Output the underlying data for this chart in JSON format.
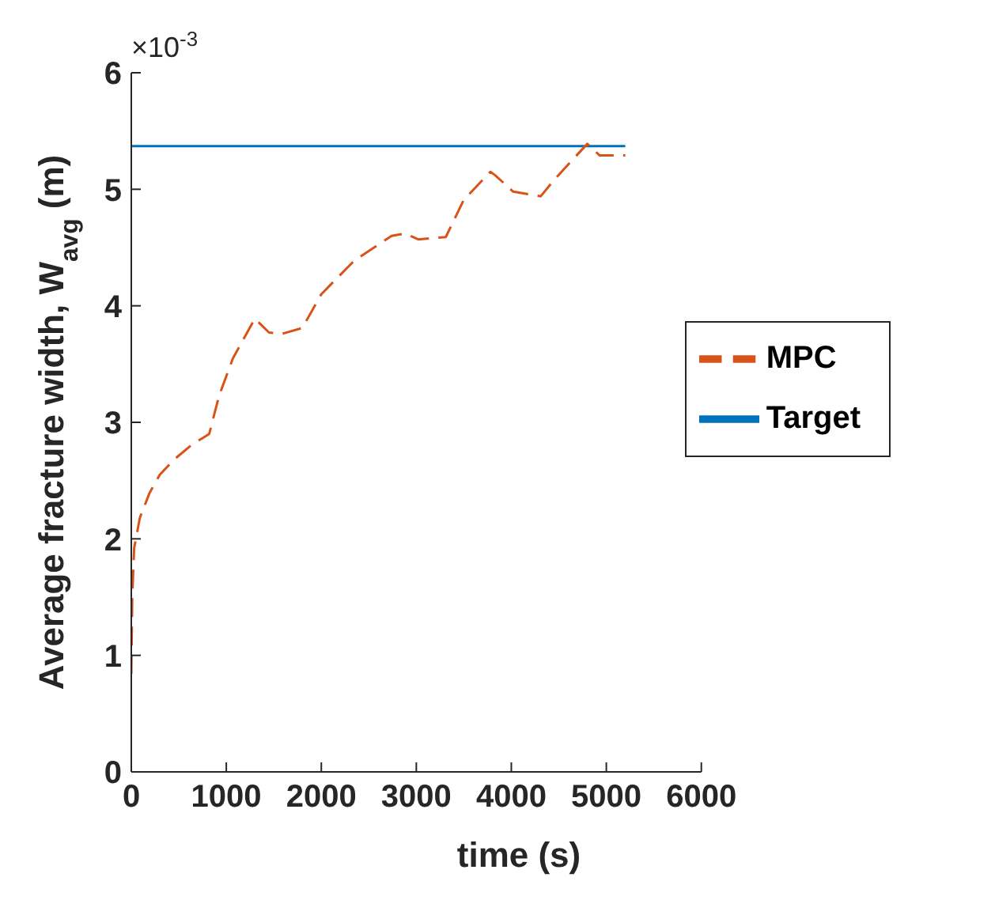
{
  "chart_data": {
    "type": "line",
    "xlabel": "time (s)",
    "ylabel": "Average fracture width, W$_{avg}$ (m)",
    "annotations": [
      "×10$^{-3}$"
    ],
    "xlim": [
      0,
      6000
    ],
    "xticks": [
      0,
      1000,
      2000,
      3000,
      4000,
      5000,
      6000
    ],
    "ylim": [
      0,
      6
    ],
    "yticks": [
      0,
      1,
      2,
      3,
      4,
      5,
      6
    ],
    "grid": false,
    "legend": "right",
    "marker": "none",
    "series": [
      {
        "name": "Target",
        "color": "#0072bd",
        "line_style": "solid",
        "x": [
          0,
          5200
        ],
        "values": [
          5.37,
          5.37
        ]
      },
      {
        "name": "MPC",
        "color": "#d95319",
        "line_style": "dashed",
        "x": [
          0,
          10,
          30,
          90,
          190,
          300,
          450,
          640,
          820,
          925,
          1070,
          1300,
          1450,
          1590,
          1800,
          2000,
          2350,
          2740,
          2880,
          3020,
          3310,
          3500,
          3780,
          3830,
          4020,
          4310,
          4450,
          4640,
          4800,
          4930,
          5200
        ],
        "values": [
          0.84,
          1.5,
          1.92,
          2.18,
          2.39,
          2.55,
          2.68,
          2.81,
          2.9,
          3.23,
          3.55,
          3.89,
          3.77,
          3.76,
          3.81,
          4.1,
          4.39,
          4.6,
          4.62,
          4.57,
          4.59,
          4.91,
          5.15,
          5.12,
          4.98,
          4.94,
          5.08,
          5.25,
          5.39,
          5.29,
          5.29
        ]
      }
    ]
  }
}
